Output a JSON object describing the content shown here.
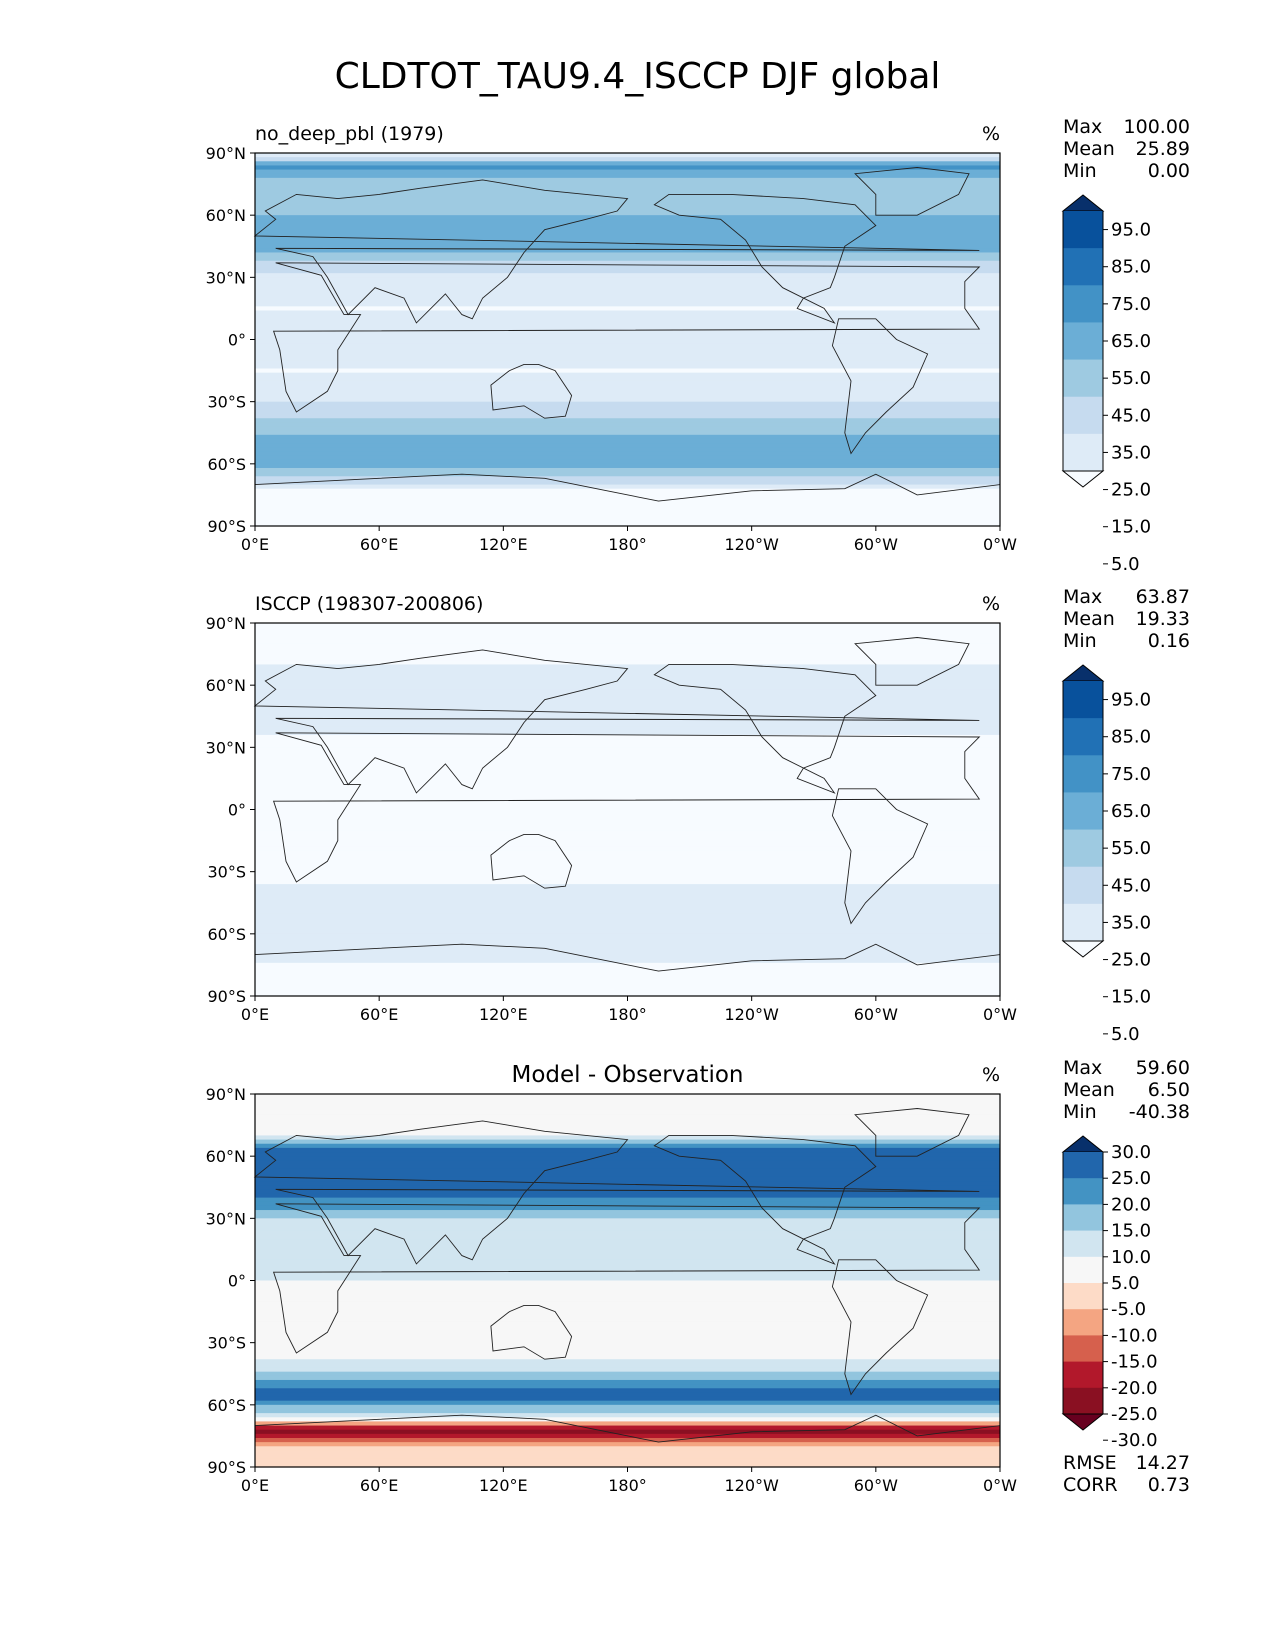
{
  "figure": {
    "title": "CLDTOT_TAU9.4_ISCCP DJF global"
  },
  "chart_data": [
    {
      "type": "heatmap",
      "panel": "model",
      "title": "no_deep_pbl (1979)",
      "units": "%",
      "xticks": [
        "0°E",
        "60°E",
        "120°E",
        "180°",
        "120°W",
        "60°W",
        "0°W"
      ],
      "yticks": [
        "90°N",
        "60°N",
        "30°N",
        "0°",
        "30°S",
        "60°S",
        "90°S"
      ],
      "xlim": [
        0,
        360
      ],
      "ylim": [
        -90,
        90
      ],
      "stats": [
        {
          "label": "Max",
          "value": "100.00"
        },
        {
          "label": "Mean",
          "value": "25.89"
        },
        {
          "label": "Min",
          "value": "0.00"
        }
      ],
      "colorbar": {
        "labels": [
          "95.0",
          "85.0",
          "75.0",
          "65.0",
          "55.0",
          "45.0",
          "35.0",
          "25.0",
          "15.0",
          "5.0"
        ],
        "colors": [
          "#08306b",
          "#08519c",
          "#2171b5",
          "#4292c6",
          "#6baed6",
          "#9ecae1",
          "#c6dbef",
          "#deebf7",
          "#f7fbff"
        ],
        "extend": "both"
      },
      "zonal_profile": {
        "lat": [
          90,
          83,
          75,
          60,
          45,
          30,
          15,
          0,
          -15,
          -30,
          -45,
          -55,
          -65,
          -75,
          -90
        ],
        "value": [
          25,
          70,
          50,
          55,
          60,
          30,
          25,
          30,
          25,
          35,
          55,
          65,
          50,
          15,
          5
        ]
      }
    },
    {
      "type": "heatmap",
      "panel": "observation",
      "title": "ISCCP (198307-200806)",
      "units": "%",
      "xticks": [
        "0°E",
        "60°E",
        "120°E",
        "180°",
        "120°W",
        "60°W",
        "0°W"
      ],
      "yticks": [
        "90°N",
        "60°N",
        "30°N",
        "0°",
        "30°S",
        "60°S",
        "90°S"
      ],
      "xlim": [
        0,
        360
      ],
      "ylim": [
        -90,
        90
      ],
      "stats": [
        {
          "label": "Max",
          "value": "63.87"
        },
        {
          "label": "Mean",
          "value": "19.33"
        },
        {
          "label": "Min",
          "value": "0.16"
        }
      ],
      "colorbar": {
        "labels": [
          "95.0",
          "85.0",
          "75.0",
          "65.0",
          "55.0",
          "45.0",
          "35.0",
          "25.0",
          "15.0",
          "5.0"
        ],
        "colors": [
          "#08306b",
          "#08519c",
          "#2171b5",
          "#4292c6",
          "#6baed6",
          "#9ecae1",
          "#c6dbef",
          "#deebf7",
          "#f7fbff"
        ],
        "extend": "both"
      },
      "zonal_profile": {
        "lat": [
          90,
          70,
          60,
          45,
          30,
          15,
          0,
          -15,
          -30,
          -45,
          -55,
          -65,
          -75,
          -90
        ],
        "value": [
          0,
          25,
          30,
          35,
          20,
          15,
          18,
          15,
          22,
          30,
          32,
          30,
          25,
          10
        ]
      }
    },
    {
      "type": "heatmap",
      "panel": "difference",
      "title": "Model - Observation",
      "units": "%",
      "xticks": [
        "0°E",
        "60°E",
        "120°E",
        "180°",
        "120°W",
        "60°W",
        "0°W"
      ],
      "yticks": [
        "90°N",
        "60°N",
        "30°N",
        "0°",
        "30°S",
        "60°S",
        "90°S"
      ],
      "xlim": [
        0,
        360
      ],
      "ylim": [
        -90,
        90
      ],
      "stats": [
        {
          "label": "Max",
          "value": "59.60"
        },
        {
          "label": "Mean",
          "value": "6.50"
        },
        {
          "label": "Min",
          "value": "-40.38"
        }
      ],
      "extra_stats": [
        {
          "label": "RMSE",
          "value": "14.27"
        },
        {
          "label": "CORR",
          "value": "0.73"
        }
      ],
      "colorbar": {
        "labels": [
          "30.0",
          "25.0",
          "20.0",
          "15.0",
          "10.0",
          "5.0",
          "-5.0",
          "-10.0",
          "-15.0",
          "-20.0",
          "-25.0",
          "-30.0"
        ],
        "colors": [
          "#08306b",
          "#2166ac",
          "#4393c3",
          "#92c5de",
          "#d1e5f0",
          "#f7f7f7",
          "#fddbc7",
          "#f4a582",
          "#d6604d",
          "#b2182b",
          "#8a1022",
          "#67001f"
        ],
        "extend": "both"
      },
      "zonal_profile": {
        "lat": [
          90,
          70,
          60,
          45,
          30,
          15,
          0,
          -15,
          -30,
          -45,
          -55,
          -65,
          -72,
          -80,
          -90
        ],
        "value": [
          0,
          5,
          30,
          25,
          10,
          5,
          5,
          2,
          0,
          10,
          25,
          8,
          -30,
          -10,
          -5
        ]
      }
    }
  ]
}
